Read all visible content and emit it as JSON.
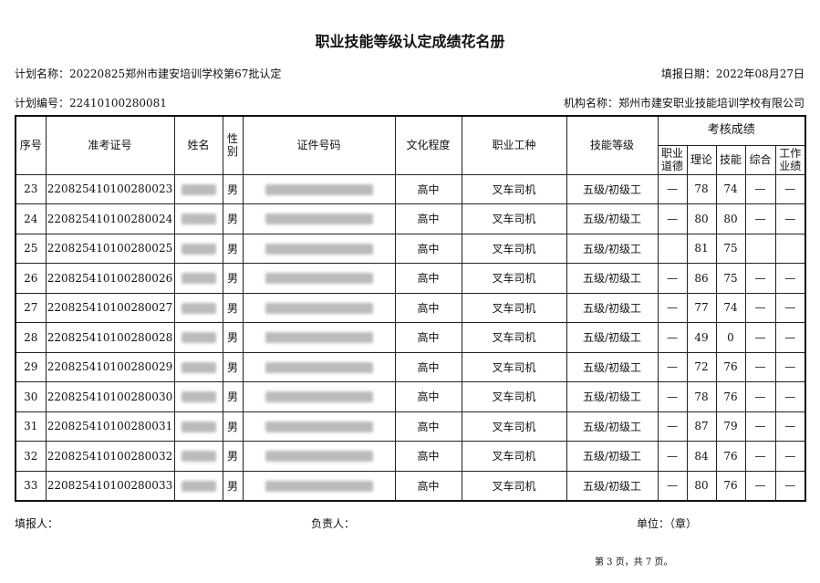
{
  "title": "职业技能等级认定成绩花名册",
  "plan_name_label": "计划名称：",
  "plan_name": "20220825郑州市建安培训学校第67批认定",
  "fill_date_label": "填报日期：",
  "fill_date": "2022年08月27日",
  "plan_no_label": "计划编号：",
  "plan_no": "22410100280081",
  "org_label": "机构名称：",
  "org_name": "郑州市建安职业技能培训学校有限公司",
  "headers": {
    "seq": "序号",
    "exam_no": "准考证号",
    "name": "姓名",
    "gender": "性别",
    "id_no": "证件号码",
    "education": "文化程度",
    "occupation": "职业工种",
    "level": "技能等级",
    "scores": "考核成绩",
    "ethics": "职业道德",
    "theory": "理论",
    "skill": "技能",
    "overall": "综合",
    "performance": "工作业绩"
  },
  "rows": [
    {
      "seq": "23",
      "exam_no": "220825410100280023",
      "gender": "男",
      "education": "高中",
      "occupation": "叉车司机",
      "level": "五级/初级工",
      "ethics": "—",
      "theory": "78",
      "skill": "74",
      "overall": "—",
      "performance": "—"
    },
    {
      "seq": "24",
      "exam_no": "220825410100280024",
      "gender": "男",
      "education": "高中",
      "occupation": "叉车司机",
      "level": "五级/初级工",
      "ethics": "—",
      "theory": "80",
      "skill": "80",
      "overall": "—",
      "performance": "—"
    },
    {
      "seq": "25",
      "exam_no": "220825410100280025",
      "gender": "男",
      "education": "高中",
      "occupation": "叉车司机",
      "level": "五级/初级工",
      "ethics": "",
      "theory": "81",
      "skill": "75",
      "overall": "",
      "performance": ""
    },
    {
      "seq": "26",
      "exam_no": "220825410100280026",
      "gender": "男",
      "education": "高中",
      "occupation": "叉车司机",
      "level": "五级/初级工",
      "ethics": "—",
      "theory": "86",
      "skill": "75",
      "overall": "—",
      "performance": "—"
    },
    {
      "seq": "27",
      "exam_no": "220825410100280027",
      "gender": "男",
      "education": "高中",
      "occupation": "叉车司机",
      "level": "五级/初级工",
      "ethics": "—",
      "theory": "77",
      "skill": "74",
      "overall": "—",
      "performance": "—"
    },
    {
      "seq": "28",
      "exam_no": "220825410100280028",
      "gender": "男",
      "education": "高中",
      "occupation": "叉车司机",
      "level": "五级/初级工",
      "ethics": "—",
      "theory": "49",
      "skill": "0",
      "overall": "—",
      "performance": "—"
    },
    {
      "seq": "29",
      "exam_no": "220825410100280029",
      "gender": "男",
      "education": "高中",
      "occupation": "叉车司机",
      "level": "五级/初级工",
      "ethics": "—",
      "theory": "72",
      "skill": "76",
      "overall": "—",
      "performance": "—"
    },
    {
      "seq": "30",
      "exam_no": "220825410100280030",
      "gender": "男",
      "education": "高中",
      "occupation": "叉车司机",
      "level": "五级/初级工",
      "ethics": "—",
      "theory": "78",
      "skill": "76",
      "overall": "—",
      "performance": "—"
    },
    {
      "seq": "31",
      "exam_no": "220825410100280031",
      "gender": "男",
      "education": "高中",
      "occupation": "叉车司机",
      "level": "五级/初级工",
      "ethics": "—",
      "theory": "87",
      "skill": "79",
      "overall": "—",
      "performance": "—"
    },
    {
      "seq": "32",
      "exam_no": "220825410100280032",
      "gender": "男",
      "education": "高中",
      "occupation": "叉车司机",
      "level": "五级/初级工",
      "ethics": "—",
      "theory": "84",
      "skill": "76",
      "overall": "—",
      "performance": "—"
    },
    {
      "seq": "33",
      "exam_no": "220825410100280033",
      "gender": "男",
      "education": "高中",
      "occupation": "叉车司机",
      "level": "五级/初级工",
      "ethics": "—",
      "theory": "80",
      "skill": "76",
      "overall": "—",
      "performance": "—"
    }
  ],
  "footer": {
    "filler": "填报人：",
    "responsible": "负责人：",
    "unit": "单位：（章）",
    "page": "第 3 页，共 7 页。"
  }
}
